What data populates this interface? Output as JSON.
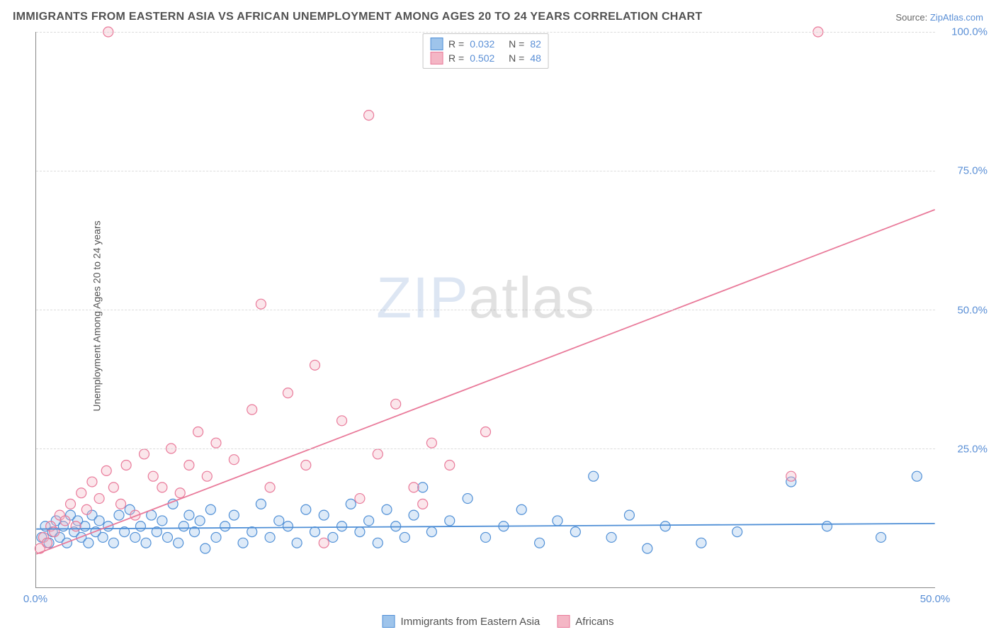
{
  "title": "IMMIGRANTS FROM EASTERN ASIA VS AFRICAN UNEMPLOYMENT AMONG AGES 20 TO 24 YEARS CORRELATION CHART",
  "source_label": "Source:",
  "source_name": "ZipAtlas.com",
  "ylabel": "Unemployment Among Ages 20 to 24 years",
  "watermark": {
    "z": "ZIP",
    "rest": "atlas"
  },
  "chart": {
    "type": "scatter",
    "background_color": "#ffffff",
    "grid_color": "#dcdcdc",
    "axis_color": "#888888",
    "tick_label_color": "#5a8fd6",
    "title_color": "#525252",
    "xlim": [
      0,
      50
    ],
    "ylim": [
      0,
      100
    ],
    "xticks": [
      {
        "v": 0,
        "label": "0.0%"
      },
      {
        "v": 50,
        "label": "50.0%"
      }
    ],
    "yticks": [
      {
        "v": 25,
        "label": "25.0%"
      },
      {
        "v": 50,
        "label": "50.0%"
      },
      {
        "v": 75,
        "label": "75.0%"
      },
      {
        "v": 100,
        "label": "100.0%"
      }
    ],
    "marker_radius": 7,
    "marker_fill_opacity": 0.35,
    "line_width": 1.8,
    "series": [
      {
        "name": "Immigrants from Eastern Asia",
        "color_fill": "#9ec4eb",
        "color_stroke": "#4f8fd6",
        "r": 0.032,
        "n": 82,
        "trend": {
          "x1": 0,
          "y1": 10.5,
          "x2": 50,
          "y2": 11.5
        },
        "points": [
          [
            0.3,
            9
          ],
          [
            0.5,
            11
          ],
          [
            0.7,
            8
          ],
          [
            0.9,
            10
          ],
          [
            1.1,
            12
          ],
          [
            1.3,
            9
          ],
          [
            1.5,
            11
          ],
          [
            1.7,
            8
          ],
          [
            1.9,
            13
          ],
          [
            2.1,
            10
          ],
          [
            2.3,
            12
          ],
          [
            2.5,
            9
          ],
          [
            2.7,
            11
          ],
          [
            2.9,
            8
          ],
          [
            3.1,
            13
          ],
          [
            3.3,
            10
          ],
          [
            3.5,
            12
          ],
          [
            3.7,
            9
          ],
          [
            4.0,
            11
          ],
          [
            4.3,
            8
          ],
          [
            4.6,
            13
          ],
          [
            4.9,
            10
          ],
          [
            5.2,
            14
          ],
          [
            5.5,
            9
          ],
          [
            5.8,
            11
          ],
          [
            6.1,
            8
          ],
          [
            6.4,
            13
          ],
          [
            6.7,
            10
          ],
          [
            7.0,
            12
          ],
          [
            7.3,
            9
          ],
          [
            7.6,
            15
          ],
          [
            7.9,
            8
          ],
          [
            8.2,
            11
          ],
          [
            8.5,
            13
          ],
          [
            8.8,
            10
          ],
          [
            9.1,
            12
          ],
          [
            9.4,
            7
          ],
          [
            9.7,
            14
          ],
          [
            10.0,
            9
          ],
          [
            10.5,
            11
          ],
          [
            11.0,
            13
          ],
          [
            11.5,
            8
          ],
          [
            12.0,
            10
          ],
          [
            12.5,
            15
          ],
          [
            13.0,
            9
          ],
          [
            13.5,
            12
          ],
          [
            14.0,
            11
          ],
          [
            14.5,
            8
          ],
          [
            15.0,
            14
          ],
          [
            15.5,
            10
          ],
          [
            16.0,
            13
          ],
          [
            16.5,
            9
          ],
          [
            17.0,
            11
          ],
          [
            17.5,
            15
          ],
          [
            18.0,
            10
          ],
          [
            18.5,
            12
          ],
          [
            19.0,
            8
          ],
          [
            19.5,
            14
          ],
          [
            20.0,
            11
          ],
          [
            20.5,
            9
          ],
          [
            21.0,
            13
          ],
          [
            21.5,
            18
          ],
          [
            22.0,
            10
          ],
          [
            23.0,
            12
          ],
          [
            24.0,
            16
          ],
          [
            25.0,
            9
          ],
          [
            26.0,
            11
          ],
          [
            27.0,
            14
          ],
          [
            28.0,
            8
          ],
          [
            29.0,
            12
          ],
          [
            30.0,
            10
          ],
          [
            31.0,
            20
          ],
          [
            32.0,
            9
          ],
          [
            33.0,
            13
          ],
          [
            34.0,
            7
          ],
          [
            35.0,
            11
          ],
          [
            37.0,
            8
          ],
          [
            39.0,
            10
          ],
          [
            42.0,
            19
          ],
          [
            44.0,
            11
          ],
          [
            47.0,
            9
          ],
          [
            49.0,
            20
          ]
        ]
      },
      {
        "name": "Africans",
        "color_fill": "#f4b6c5",
        "color_stroke": "#e97a9a",
        "r": 0.502,
        "n": 48,
        "trend": {
          "x1": 0,
          "y1": 6,
          "x2": 50,
          "y2": 68
        },
        "points": [
          [
            0.2,
            7
          ],
          [
            0.4,
            9
          ],
          [
            0.6,
            8
          ],
          [
            0.8,
            11
          ],
          [
            1.0,
            10
          ],
          [
            1.3,
            13
          ],
          [
            1.6,
            12
          ],
          [
            1.9,
            15
          ],
          [
            2.2,
            11
          ],
          [
            2.5,
            17
          ],
          [
            2.8,
            14
          ],
          [
            3.1,
            19
          ],
          [
            3.5,
            16
          ],
          [
            3.9,
            21
          ],
          [
            4.3,
            18
          ],
          [
            4.7,
            15
          ],
          [
            5.0,
            22
          ],
          [
            5.5,
            13
          ],
          [
            6.0,
            24
          ],
          [
            6.5,
            20
          ],
          [
            7.0,
            18
          ],
          [
            7.5,
            25
          ],
          [
            8.0,
            17
          ],
          [
            8.5,
            22
          ],
          [
            9.0,
            28
          ],
          [
            9.5,
            20
          ],
          [
            10.0,
            26
          ],
          [
            11.0,
            23
          ],
          [
            12.0,
            32
          ],
          [
            12.5,
            51
          ],
          [
            13.0,
            18
          ],
          [
            14.0,
            35
          ],
          [
            15.0,
            22
          ],
          [
            15.5,
            40
          ],
          [
            16.0,
            8
          ],
          [
            17.0,
            30
          ],
          [
            18.0,
            16
          ],
          [
            18.5,
            85
          ],
          [
            19.0,
            24
          ],
          [
            20.0,
            33
          ],
          [
            21.0,
            18
          ],
          [
            21.5,
            15
          ],
          [
            22.0,
            26
          ],
          [
            23.0,
            22
          ],
          [
            25.0,
            28
          ],
          [
            42.0,
            20
          ],
          [
            43.5,
            100
          ],
          [
            4.0,
            100
          ]
        ]
      }
    ]
  },
  "legend_top": {
    "rows": [
      {
        "swatch_fill": "#9ec4eb",
        "swatch_stroke": "#4f8fd6",
        "r_label": "R =",
        "r": "0.032",
        "n_label": "N =",
        "n": "82"
      },
      {
        "swatch_fill": "#f4b6c5",
        "swatch_stroke": "#e97a9a",
        "r_label": "R =",
        "r": "0.502",
        "n_label": "N =",
        "n": "48"
      }
    ]
  },
  "legend_bottom": {
    "items": [
      {
        "swatch_fill": "#9ec4eb",
        "swatch_stroke": "#4f8fd6",
        "label": "Immigrants from Eastern Asia"
      },
      {
        "swatch_fill": "#f4b6c5",
        "swatch_stroke": "#e97a9a",
        "label": "Africans"
      }
    ]
  }
}
